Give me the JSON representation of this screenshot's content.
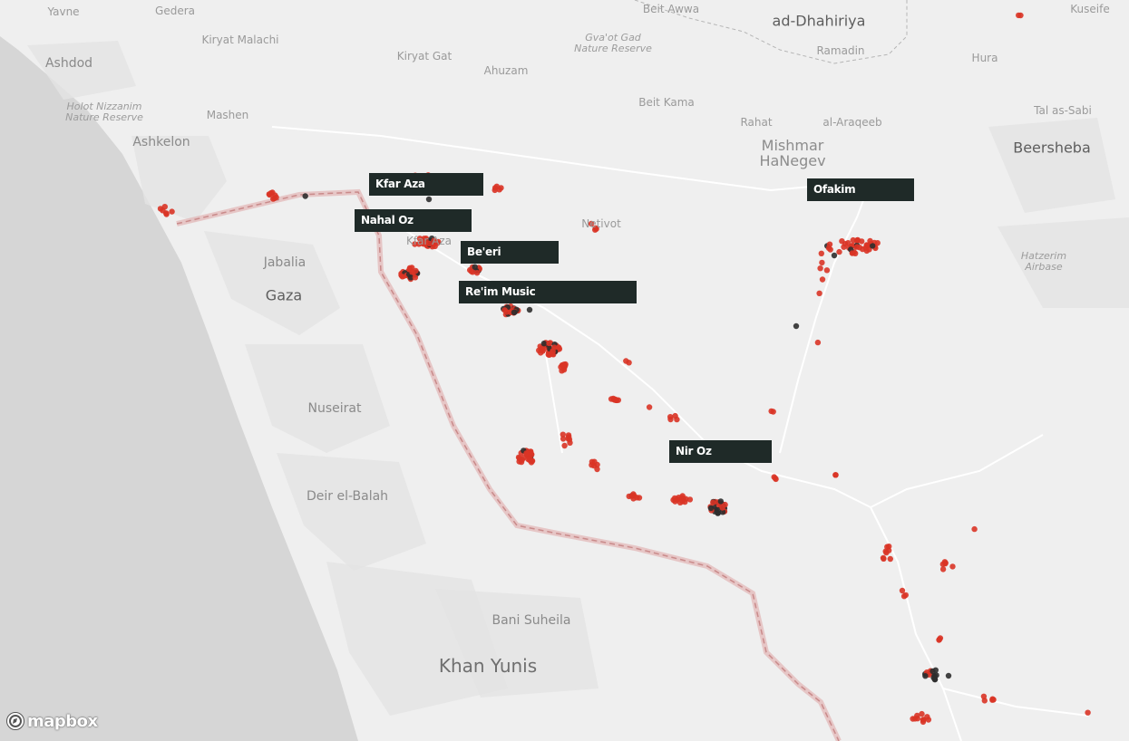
{
  "map": {
    "attribution": {
      "logo_text": "mapbox"
    },
    "colors": {
      "land": "#efefef",
      "sea": "#d6d6d6",
      "urban": "#e4e4e4",
      "border": "#e0aaaa",
      "marker_red": "#d93426",
      "marker_dark": "#2e2e2e",
      "callout_bg": "#1f2a28"
    },
    "places": [
      {
        "name": "Yavne",
        "size": "small"
      },
      {
        "name": "Gedera",
        "size": "small"
      },
      {
        "name": "Beit Awwa",
        "size": "small"
      },
      {
        "name": "ad-Dhahiriya",
        "size": "large"
      },
      {
        "name": "Kuseife",
        "size": "small"
      },
      {
        "name": "Kiryat Malachi",
        "size": "small"
      },
      {
        "name": "Ashdod",
        "size": "medium"
      },
      {
        "name": "Kiryat Gat",
        "size": "small"
      },
      {
        "name": "Ahuzam",
        "size": "small"
      },
      {
        "name": "Gva'ot Gad\nNature Reserve",
        "size": "italic"
      },
      {
        "name": "Ramadin",
        "size": "small"
      },
      {
        "name": "Hura",
        "size": "small"
      },
      {
        "name": "Holot Nizzanim\nNature Reserve",
        "size": "italic"
      },
      {
        "name": "Mashen",
        "size": "small"
      },
      {
        "name": "Beit Kama",
        "size": "small"
      },
      {
        "name": "Rahat",
        "size": "small"
      },
      {
        "name": "al-Araqeeb",
        "size": "small"
      },
      {
        "name": "Tal as-Sabi",
        "size": "small"
      },
      {
        "name": "Ashkelon",
        "size": "medium"
      },
      {
        "name": "Mishmar\nHaNegev",
        "size": "multi"
      },
      {
        "name": "Beersheba",
        "size": "large"
      },
      {
        "name": "Netivot",
        "size": "small"
      },
      {
        "name": "Kfar Aza",
        "size": "small"
      },
      {
        "name": "Jabalia",
        "size": "medium"
      },
      {
        "name": "Gaza",
        "size": "large"
      },
      {
        "name": "Hatzerim Airbase",
        "size": "italic"
      },
      {
        "name": "Nuseirat",
        "size": "medium"
      },
      {
        "name": "Deir el-Balah",
        "size": "medium"
      },
      {
        "name": "Bani Suheila",
        "size": "medium"
      },
      {
        "name": "Khan Yunis",
        "size": "xlarge"
      }
    ],
    "callouts": [
      {
        "label": "Kfar Aza"
      },
      {
        "label": "Nahal Oz"
      },
      {
        "label": "Be'eri"
      },
      {
        "label": "Re'im Music"
      },
      {
        "label": "Ofakim"
      },
      {
        "label": "Nir Oz"
      }
    ]
  }
}
